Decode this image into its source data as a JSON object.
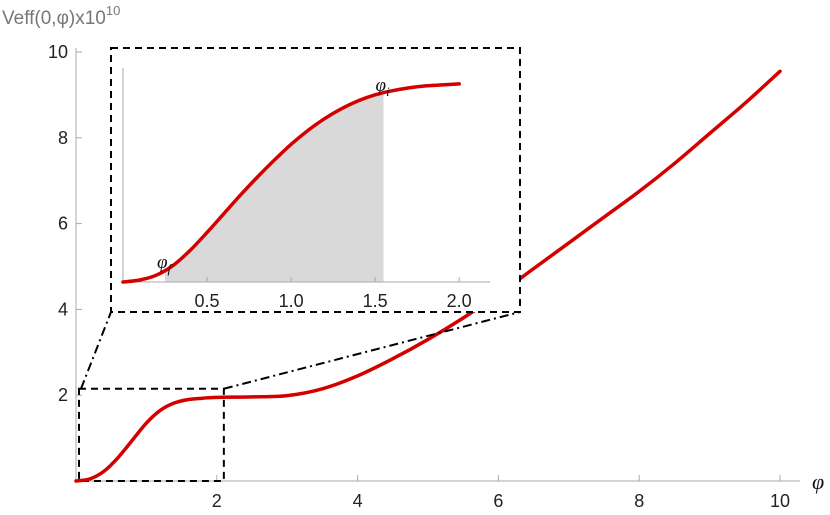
{
  "chart_data": [
    {
      "type": "line",
      "role": "main",
      "ylabel": "Veff(0,φ)x10",
      "ylabel_exp": "10",
      "xlabel": "φ",
      "xlim": [
        0,
        10
      ],
      "ylim": [
        0,
        10
      ],
      "x_ticks": [
        2,
        4,
        6,
        8,
        10
      ],
      "y_ticks": [
        2,
        4,
        6,
        8,
        10
      ],
      "grid": false,
      "line_color": "#d40000",
      "series": [
        {
          "x": [
            0,
            0.2,
            0.4,
            0.6,
            0.8,
            1.0,
            1.2,
            1.4,
            1.6,
            1.8,
            2.0,
            2.5,
            3.0,
            3.5,
            4.0,
            4.5,
            5.0,
            5.5,
            6.0,
            6.5,
            7.0,
            7.5,
            8.0,
            8.5,
            9.0,
            9.5,
            10.0
          ],
          "y": [
            0.0,
            0.05,
            0.23,
            0.55,
            0.95,
            1.35,
            1.65,
            1.82,
            1.9,
            1.93,
            1.95,
            1.96,
            1.99,
            2.15,
            2.45,
            2.85,
            3.3,
            3.8,
            4.35,
            4.95,
            5.55,
            6.15,
            6.75,
            7.4,
            8.1,
            8.8,
            9.55
          ]
        }
      ],
      "zoom_box": {
        "x": [
          0,
          2.1
        ],
        "y": [
          0,
          2.15
        ]
      }
    },
    {
      "type": "area",
      "role": "inset",
      "xlabel": "φ",
      "x_ticks": [
        "0.5",
        "1.0",
        "1.5",
        "2.0"
      ],
      "x_tick_values": [
        0.5,
        1.0,
        1.5,
        2.0
      ],
      "xlim": [
        0,
        2.1
      ],
      "ylim": [
        0,
        2.1
      ],
      "line_color": "#d40000",
      "fill_color": "#d9d9d9",
      "shaded_range": [
        0.25,
        1.55
      ],
      "series": [
        {
          "x": [
            0,
            0.1,
            0.2,
            0.3,
            0.4,
            0.5,
            0.6,
            0.7,
            0.8,
            0.9,
            1.0,
            1.1,
            1.2,
            1.3,
            1.4,
            1.5,
            1.6,
            1.7,
            1.8,
            1.9,
            2.0
          ],
          "y": [
            0.0,
            0.02,
            0.07,
            0.17,
            0.32,
            0.5,
            0.69,
            0.88,
            1.06,
            1.23,
            1.39,
            1.53,
            1.65,
            1.75,
            1.83,
            1.89,
            1.93,
            1.96,
            1.98,
            1.99,
            2.0
          ]
        }
      ],
      "annotations": [
        {
          "text": "φ",
          "sub": "f",
          "x": 0.25
        },
        {
          "text": "φ",
          "sub": "i",
          "x": 1.55
        }
      ]
    }
  ]
}
